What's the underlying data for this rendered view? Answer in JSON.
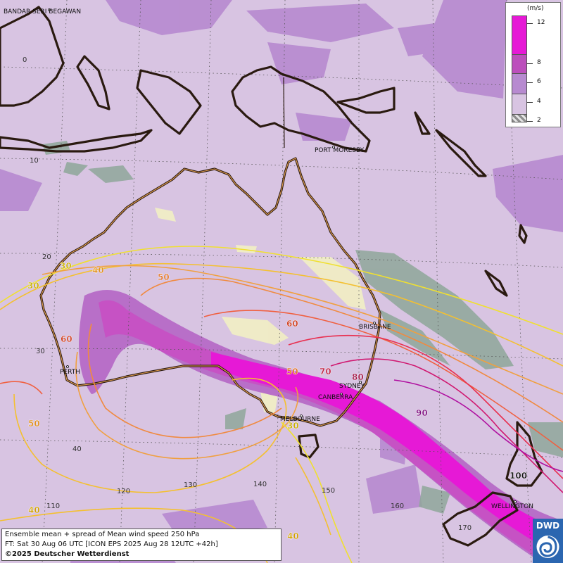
{
  "map": {
    "cities": [
      {
        "name": "BANDAR SERI BEGAWAN"
      },
      {
        "name": "PORT MORESBY"
      },
      {
        "name": "BRISBANE"
      },
      {
        "name": "PERTH"
      },
      {
        "name": "SYDNEY"
      },
      {
        "name": "CANBERRA"
      },
      {
        "name": "MELBOURNE"
      },
      {
        "name": "WELLINGTON"
      }
    ],
    "latitude_labels": [
      "0",
      "10",
      "20",
      "30",
      "40"
    ],
    "longitude_labels": [
      "110",
      "120",
      "130",
      "140",
      "150",
      "160",
      "170"
    ],
    "contour_labels": [
      "30",
      "40",
      "30",
      "50",
      "60",
      "60",
      "50",
      "70",
      "80",
      "90",
      "50",
      "30",
      "40",
      "40",
      "100"
    ]
  },
  "legend": {
    "unit": "(m/s)",
    "ticks": [
      "12",
      "8",
      "6",
      "4",
      "2"
    ],
    "colors": [
      "#e619d6",
      "#bc4fbc",
      "#b78ad0",
      "#d8c4e2",
      "#8e8e8e"
    ]
  },
  "info": {
    "line1": "Ensemble mean + spread of Mean wind speed 250 hPa",
    "line2": "FT: Sat 30 Aug 06 UTC [ICON EPS 2025 Aug 28 12UTC +42h]",
    "line3": "©2025 Deutscher Wetterdienst"
  },
  "logo": {
    "text": "DWD"
  }
}
